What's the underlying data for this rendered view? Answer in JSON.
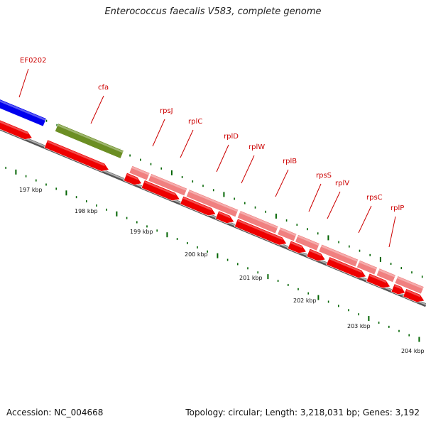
{
  "map": {
    "title": "Enterococcus faecalis V583, complete genome",
    "accession": "Accession: NC_004668",
    "summary": "Topology: circular; Length: 3,218,031 bp; Genes: 3,192"
  },
  "colors": {
    "cds_forward": "#0000ee",
    "cds_reverse": "#ee0000",
    "misc_feature": "#6b8e23",
    "operon_feature": "#f08080",
    "backbone": "#888888",
    "tick": "#006400",
    "label": "#cc0000"
  },
  "genes": [
    {
      "name": "EF0202"
    },
    {
      "name": "cfa"
    },
    {
      "name": "rpsJ"
    },
    {
      "name": "rplC"
    },
    {
      "name": "rplD"
    },
    {
      "name": "rplW"
    },
    {
      "name": "rplB"
    },
    {
      "name": "rpsS"
    },
    {
      "name": "rplV"
    },
    {
      "name": "rpsC"
    },
    {
      "name": "rplP"
    }
  ],
  "kbp_labels": [
    "197 kbp",
    "198 kbp",
    "199 kbp",
    "200 kbp",
    "201 kbp",
    "202 kbp",
    "203 kbp",
    "204 kbp"
  ]
}
